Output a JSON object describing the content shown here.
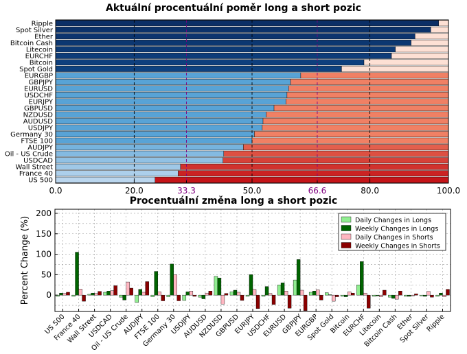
{
  "chart_data": [
    {
      "type": "bar",
      "orientation": "horizontal",
      "stacked": true,
      "title": "Aktuální procentuální poměr long a short pozic",
      "xlim": [
        0,
        100
      ],
      "xticks": [
        "0.0",
        "20.0",
        "33.3",
        "50.0",
        "66.6",
        "80.0",
        "100.0"
      ],
      "reference_lines": [
        33.3,
        50.0,
        66.6
      ],
      "grid": true,
      "categories": [
        "Ripple",
        "Spot Silver",
        "Ether",
        "Bitcoin Cash",
        "Litecoin",
        "EURCHF",
        "Bitcoin",
        "Spot Gold",
        "EURGBP",
        "GBPJPY",
        "EURUSD",
        "USDCHF",
        "EURJPY",
        "GBPUSD",
        "NZDUSD",
        "AUDUSD",
        "USDJPY",
        "Germany 30",
        "FTSE 100",
        "AUDJPY",
        "Oil - US Crude",
        "USDCAD",
        "Wall Street",
        "France 40",
        "US 500"
      ],
      "long_pct": [
        97.5,
        95.5,
        91.5,
        90.5,
        86.5,
        85.5,
        78.5,
        72.8,
        62.4,
        59.8,
        59.3,
        58.9,
        58.6,
        55.6,
        53.6,
        52.8,
        52.6,
        50.6,
        50.0,
        47.8,
        42.8,
        42.6,
        31.8,
        31.2,
        25.3
      ],
      "colors": {
        "long_group_high": "#104f93",
        "long_group_low": "#58a3d6",
        "long_dark": "#0b2f66",
        "long_light": "#bad6ee",
        "short_light": "#fde0d4",
        "short_mid": "#f08064",
        "short_dark": "#c51418",
        "ref_line": "#800080"
      }
    },
    {
      "type": "bar",
      "title": "Procentuální změna long a short pozic",
      "ylabel": "Percent Change (%)",
      "ylim": [
        -40,
        210
      ],
      "yticks": [
        "200",
        "150",
        "100",
        "50",
        "0"
      ],
      "grid": true,
      "legend": "top-right",
      "categories": [
        "US 500",
        "France 40",
        "Wall Street",
        "USDCAD",
        "Oil - US Crude",
        "AUDJPY",
        "FTSE 100",
        "Germany 30",
        "USDJPY",
        "AUDUSD",
        "NZDUSD",
        "GBPUSD",
        "EURJPY",
        "USDCHF",
        "EURUSD",
        "GBPJPY",
        "EURGBP",
        "Spot Gold",
        "Bitcoin",
        "EURCHF",
        "Litecoin",
        "Bitcoin Cash",
        "Ether",
        "Spot Silver",
        "Ripple"
      ],
      "series": [
        {
          "name": "Daily Changes in Longs",
          "color": "#90ee90",
          "values": [
            -3,
            -3,
            2,
            7,
            -5,
            -18,
            -4,
            -4,
            -13,
            -5,
            46,
            8,
            -3,
            -3,
            25,
            37,
            7,
            6,
            -3,
            25,
            -3,
            -5,
            -3,
            -2,
            -3
          ]
        },
        {
          "name": "Weekly Changes in Longs",
          "color": "#006400",
          "values": [
            5,
            105,
            5,
            10,
            -12,
            14,
            58,
            76,
            8,
            -9,
            42,
            12,
            50,
            21,
            30,
            87,
            10,
            1,
            -4,
            82,
            -2,
            -8,
            -3,
            -3,
            5
          ]
        },
        {
          "name": "Daily Changes in Shorts",
          "color": "#ffb6c1",
          "values": [
            4,
            15,
            4,
            11,
            32,
            7,
            8,
            50,
            10,
            5,
            -22,
            7,
            14,
            4,
            10,
            12,
            13,
            -15,
            8,
            5,
            -4,
            -10,
            -2,
            9,
            -4
          ]
        },
        {
          "name": "Weekly Changes in Shorts",
          "color": "#8b0000",
          "values": [
            7,
            -15,
            9,
            23,
            17,
            33,
            -14,
            -14,
            -3,
            10,
            4,
            -13,
            -33,
            -23,
            -32,
            -38,
            -12,
            -4,
            5,
            -32,
            12,
            10,
            3,
            -5,
            14
          ]
        }
      ]
    }
  ]
}
